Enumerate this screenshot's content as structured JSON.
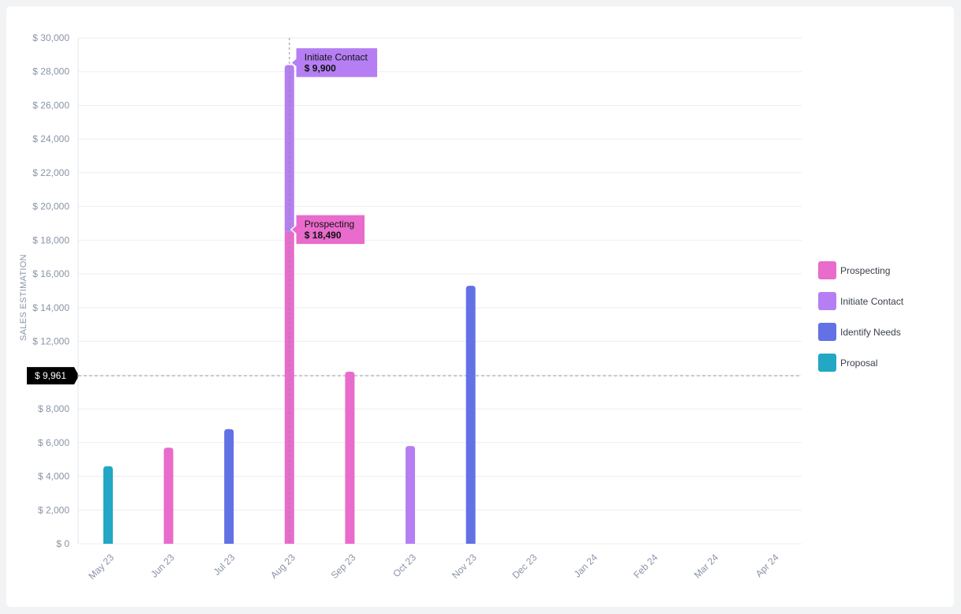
{
  "chart_data": {
    "type": "bar",
    "ylabel": "SALES ESTIMATION",
    "xlabel": "",
    "ylim": [
      0,
      30000
    ],
    "y_ticks": [
      0,
      2000,
      4000,
      6000,
      8000,
      10000,
      12000,
      14000,
      16000,
      18000,
      20000,
      22000,
      24000,
      26000,
      28000,
      30000
    ],
    "y_tick_labels": [
      "$ 0",
      "$ 2,000",
      "$ 4,000",
      "$ 6,000",
      "$ 8,000",
      "",
      "$ 12,000",
      "$ 14,000",
      "$ 16,000",
      "$ 18,000",
      "$ 20,000",
      "$ 22,000",
      "$ 24,000",
      "$ 26,000",
      "$ 28,000",
      "$ 30,000"
    ],
    "categories": [
      "May 23",
      "Jun 23",
      "Jul 23",
      "Aug 23",
      "Sep 23",
      "Oct 23",
      "Nov 23",
      "Dec 23",
      "Jan 24",
      "Feb 24",
      "Mar 24",
      "Apr 24"
    ],
    "stacked": true,
    "series": [
      {
        "name": "Prospecting",
        "color": "#e96bcc",
        "values": [
          0,
          5700,
          0,
          18490,
          10200,
          0,
          0,
          0,
          0,
          0,
          0,
          0
        ]
      },
      {
        "name": "Initiate Contact",
        "color": "#b57ff3",
        "values": [
          0,
          0,
          0,
          9900,
          0,
          5800,
          0,
          0,
          0,
          0,
          0,
          0
        ]
      },
      {
        "name": "Identify Needs",
        "color": "#6271e3",
        "values": [
          0,
          0,
          6800,
          0,
          0,
          0,
          15300,
          0,
          0,
          0,
          0,
          0
        ]
      },
      {
        "name": "Proposal",
        "color": "#22a8c4",
        "values": [
          4600,
          0,
          0,
          0,
          0,
          0,
          0,
          0,
          0,
          0,
          0,
          0
        ]
      }
    ],
    "reference_line": {
      "value": 9961,
      "label": "$ 9,961"
    },
    "hover": {
      "category": "Aug 23",
      "tooltips": [
        {
          "series": "Initiate Contact",
          "label": "Initiate Contact",
          "value_text": "$ 9,900"
        },
        {
          "series": "Prospecting",
          "label": "Prospecting",
          "value_text": "$ 18,490"
        }
      ]
    },
    "legend": {
      "position": "right"
    },
    "grid": true
  }
}
